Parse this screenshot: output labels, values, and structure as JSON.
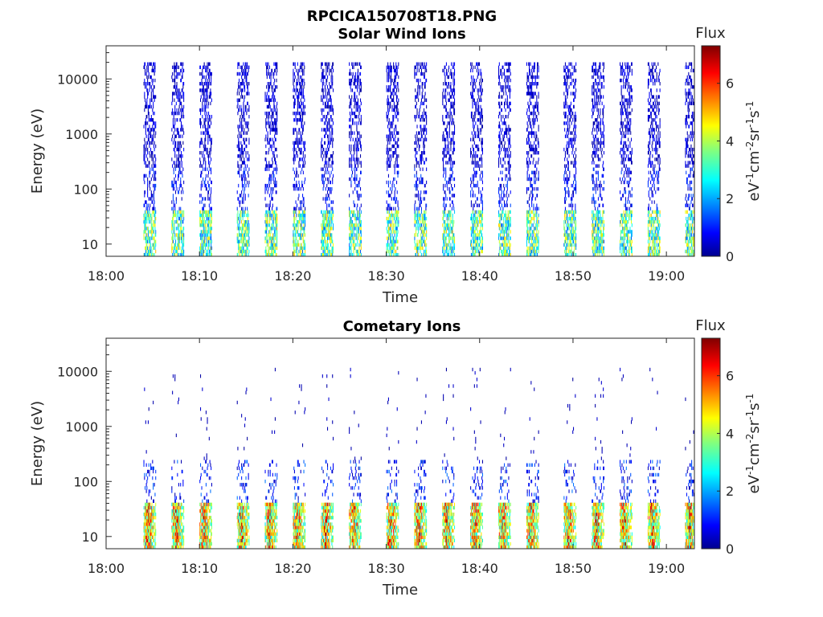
{
  "figure_title": "RPCICA150708T18.PNG",
  "colors": {
    "jet_low": "#00008f",
    "jet_high": "#800000",
    "axis": "#262626"
  },
  "chart_data": [
    {
      "type": "heatmap",
      "title": "Solar Wind Ions",
      "xlabel": "Time",
      "ylabel": "Energy (eV)",
      "y_scale": "log",
      "x_range": [
        "18:00",
        "19:03"
      ],
      "x_ticks": [
        "18:00",
        "18:10",
        "18:20",
        "18:30",
        "18:40",
        "18:50",
        "19:00"
      ],
      "y_ticks": [
        "10",
        "100",
        "1000",
        "10000"
      ],
      "ylim": [
        6,
        40000
      ],
      "colorbar": {
        "title": "Flux",
        "label": "eV-1cm-2sr-1s-1",
        "range": [
          0,
          7.3
        ],
        "ticks": [
          "0",
          "2",
          "4",
          "6"
        ]
      },
      "sweep_start_times": [
        "18:04",
        "18:07",
        "18:10",
        "18:14",
        "18:17",
        "18:20",
        "18:23",
        "18:26",
        "18:30",
        "18:33",
        "18:36",
        "18:39",
        "18:42",
        "18:45",
        "18:49",
        "18:52",
        "18:55",
        "18:58",
        "19:02"
      ],
      "features": [
        {
          "energy_range_eV": [
            6,
            40
          ],
          "flux_range": [
            1.5,
            5.0
          ],
          "description": ""
        },
        {
          "energy_range_eV": [
            100,
            20000
          ],
          "flux_range": [
            0.2,
            1.2
          ],
          "description": ""
        }
      ]
    },
    {
      "type": "heatmap",
      "title": "Cometary Ions",
      "xlabel": "Time",
      "ylabel": "Energy (eV)",
      "y_scale": "log",
      "x_range": [
        "18:00",
        "19:03"
      ],
      "x_ticks": [
        "18:00",
        "18:10",
        "18:20",
        "18:30",
        "18:40",
        "18:50",
        "19:00"
      ],
      "y_ticks": [
        "10",
        "100",
        "1000",
        "10000"
      ],
      "ylim": [
        6,
        40000
      ],
      "colorbar": {
        "title": "Flux",
        "label": "eV-1cm-2sr-1s-1",
        "range": [
          0,
          7.3
        ],
        "ticks": [
          "0",
          "2",
          "4",
          "6"
        ]
      },
      "sweep_start_times": [
        "18:04",
        "18:07",
        "18:10",
        "18:14",
        "18:17",
        "18:20",
        "18:23",
        "18:26",
        "18:30",
        "18:33",
        "18:36",
        "18:39",
        "18:42",
        "18:45",
        "18:49",
        "18:52",
        "18:55",
        "18:58",
        "19:02"
      ],
      "features": [
        {
          "energy_range_eV": [
            8,
            40
          ],
          "flux_range": [
            3.0,
            7.0
          ],
          "description": ""
        },
        {
          "energy_range_eV": [
            40,
            250
          ],
          "flux_range": [
            0.2,
            2.5
          ],
          "description": ""
        },
        {
          "energy_range_eV": [
            300,
            10000
          ],
          "flux_range": [
            0.1,
            0.6
          ],
          "description": ""
        }
      ]
    }
  ]
}
